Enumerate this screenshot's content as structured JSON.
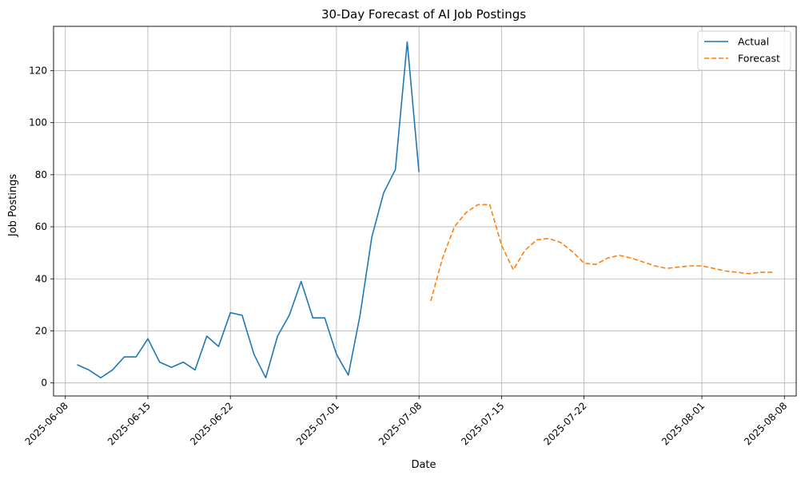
{
  "chart_data": {
    "type": "line",
    "title": "30-Day Forecast of AI Job Postings",
    "xlabel": "Date",
    "ylabel": "Job Postings",
    "xlim": [
      "2025-06-07",
      "2025-08-09"
    ],
    "ylim": [
      -5,
      137
    ],
    "grid": true,
    "legend_position": "top-right",
    "x_ticks": [
      "2025-06-08",
      "2025-06-15",
      "2025-06-22",
      "2025-07-01",
      "2025-07-08",
      "2025-07-15",
      "2025-07-22",
      "2025-08-01",
      "2025-08-08"
    ],
    "y_ticks": [
      0,
      20,
      40,
      60,
      80,
      100,
      120
    ],
    "series": [
      {
        "name": "Actual",
        "color": "#1f77b4",
        "style": "solid",
        "x": [
          "2025-06-09",
          "2025-06-10",
          "2025-06-11",
          "2025-06-12",
          "2025-06-13",
          "2025-06-14",
          "2025-06-15",
          "2025-06-16",
          "2025-06-17",
          "2025-06-18",
          "2025-06-19",
          "2025-06-20",
          "2025-06-21",
          "2025-06-22",
          "2025-06-23",
          "2025-06-24",
          "2025-06-25",
          "2025-06-26",
          "2025-06-27",
          "2025-06-28",
          "2025-06-29",
          "2025-06-30",
          "2025-07-01",
          "2025-07-02",
          "2025-07-03",
          "2025-07-04",
          "2025-07-05",
          "2025-07-06",
          "2025-07-07",
          "2025-07-08"
        ],
        "values": [
          7,
          5,
          2,
          5,
          10,
          10,
          17,
          8,
          6,
          8,
          5,
          18,
          14,
          27,
          26,
          11,
          2,
          18,
          26,
          39,
          25,
          25,
          11,
          3,
          26,
          56,
          73,
          82,
          131,
          81
        ]
      },
      {
        "name": "Forecast",
        "color": "#ff7f0e",
        "style": "dashed",
        "x": [
          "2025-07-09",
          "2025-07-10",
          "2025-07-11",
          "2025-07-12",
          "2025-07-13",
          "2025-07-14",
          "2025-07-15",
          "2025-07-16",
          "2025-07-17",
          "2025-07-18",
          "2025-07-19",
          "2025-07-20",
          "2025-07-21",
          "2025-07-22",
          "2025-07-23",
          "2025-07-24",
          "2025-07-25",
          "2025-07-26",
          "2025-07-27",
          "2025-07-28",
          "2025-07-29",
          "2025-07-30",
          "2025-07-31",
          "2025-08-01",
          "2025-08-02",
          "2025-08-03",
          "2025-08-04",
          "2025-08-05",
          "2025-08-06",
          "2025-08-07"
        ],
        "values": [
          31.5,
          48,
          60,
          65.5,
          68.5,
          68.5,
          53,
          43.5,
          51,
          55,
          55.5,
          54,
          50.5,
          46,
          45.5,
          48,
          49,
          48,
          46.5,
          45,
          44,
          44.5,
          45,
          45,
          44,
          43,
          42.5,
          42,
          42.5,
          42.5
        ]
      }
    ]
  }
}
